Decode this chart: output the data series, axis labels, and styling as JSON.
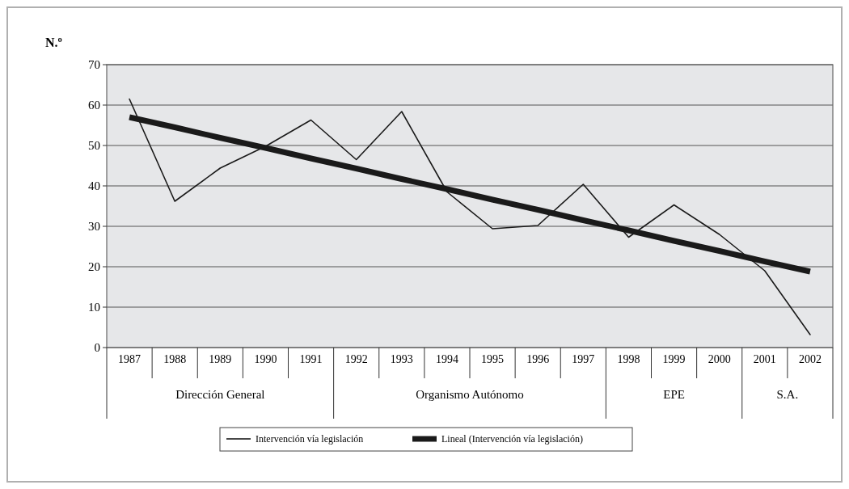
{
  "chart_data": {
    "type": "line",
    "ylabel": "N.º",
    "categories": [
      "1987",
      "1988",
      "1989",
      "1990",
      "1991",
      "1992",
      "1993",
      "1994",
      "1995",
      "1996",
      "1997",
      "1998",
      "1999",
      "2000",
      "2001",
      "2002"
    ],
    "series": [
      {
        "name": "Intervención vía legislación",
        "color": "#1a1a1a",
        "values": [
          61.5,
          36.2,
          44.4,
          49.8,
          56.3,
          46.5,
          58.4,
          38.5,
          29.4,
          30.2,
          40.4,
          27.3,
          35.3,
          28,
          19,
          3.2
        ]
      },
      {
        "name": "Lineal (Intervención vía legislación)",
        "color": "#1a1a1a",
        "values": [
          57,
          54.5,
          51.9,
          49.4,
          46.8,
          44.3,
          41.7,
          39.2,
          36.6,
          34.1,
          31.5,
          29,
          26.4,
          23.9,
          21.3,
          18.8
        ]
      }
    ],
    "ylim": [
      0,
      70
    ],
    "yticks": [
      0,
      10,
      20,
      30,
      40,
      50,
      60,
      70
    ],
    "grid": "y",
    "legend": "bottom",
    "marker": "none",
    "line_style": "solid",
    "annotations": [
      "Dirección General",
      "Organismo Autónomo",
      "EPE",
      "S.A."
    ]
  }
}
